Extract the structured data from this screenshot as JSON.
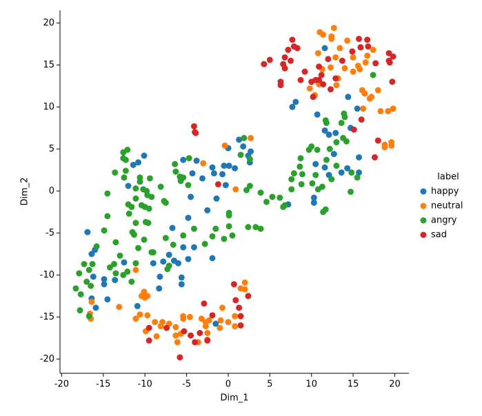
{
  "chart_data": {
    "type": "scatter",
    "x_label": "Dim_1",
    "y_label": "Dim_2",
    "legend_title": "label",
    "legend_position": "right",
    "xlim": [
      -20.2,
      21.7
    ],
    "ylim": [
      -21.7,
      21.5
    ],
    "xticks": [
      -20,
      -15,
      -10,
      -5,
      0,
      5,
      10,
      15,
      20
    ],
    "yticks": [
      -20,
      -15,
      -10,
      -5,
      0,
      5,
      10,
      15,
      20
    ],
    "series": [
      {
        "name": "happy",
        "color": "#1f77b4",
        "x": [
          -16.9,
          -16.4,
          -16.0,
          -16.4,
          -16.2,
          -15.9,
          -14.9,
          -14.9,
          -14.5,
          -13.6,
          -12.5,
          -11.4,
          -10.8,
          -10.1,
          -12.0,
          -10.9,
          -9.0,
          -8.3,
          -8.2,
          -7.8,
          -7.1,
          -6.7,
          -6.5,
          -6.0,
          -5.4,
          -5.6,
          -5.6,
          -5.4,
          -4.8,
          -4.8,
          -4.5,
          -4.3,
          -4.1,
          -3.8,
          -3.1,
          -2.5,
          -1.9,
          -1.9,
          -1.7,
          -1.4,
          -1.5,
          -0.7,
          -0.5,
          -0.3,
          0.0,
          0.1,
          0.8,
          1.3,
          1.8,
          2.4,
          2.7,
          2.6,
          7.7,
          8.1,
          7.2,
          10.3,
          10.3,
          10.5,
          10.7,
          11.6,
          11.6,
          11.6,
          12.1,
          12.1,
          12.7,
          12.9,
          13.6,
          14.3,
          14.4,
          14.7,
          15.5,
          15.7,
          15.7
        ],
        "y": [
          -4.9,
          -7.5,
          -7.0,
          -12.8,
          -10.2,
          -13.9,
          -10.5,
          -11.1,
          -12.9,
          -10.6,
          -8.5,
          3.1,
          3.4,
          4.2,
          0.6,
          -13.7,
          -8.6,
          -11.6,
          -10.2,
          -8.4,
          -7.6,
          -4.4,
          -8.3,
          -8.6,
          3.7,
          -10.3,
          -11.1,
          -6.7,
          -3.2,
          -8.1,
          -0.7,
          2.1,
          -6.7,
          3.6,
          1.5,
          -2.3,
          2.8,
          -8.0,
          2.1,
          -0.9,
          -15.8,
          2.0,
          3.0,
          0.7,
          5.1,
          3.0,
          2.7,
          6.1,
          5.3,
          4.2,
          4.7,
          3.4,
          10.0,
          10.6,
          -1.6,
          -0.8,
          -1.4,
          3.2,
          9.1,
          7.2,
          17.0,
          2.8,
          1.9,
          6.7,
          4.4,
          6.9,
          2.2,
          2.7,
          11.2,
          7.5,
          9.8,
          4.0,
          2.2
        ]
      },
      {
        "name": "neutral",
        "color": "#ff7f0e",
        "x": [
          11.0,
          11.4,
          12.7,
          12.4,
          12.4,
          14.3,
          10.8,
          13.4,
          12.9,
          15.0,
          16.7,
          17.4,
          16.5,
          15.6,
          15.8,
          14.0,
          12.3,
          11.3,
          15.0,
          13.2,
          13.0,
          10.9,
          9.8,
          10.4,
          16.1,
          16.4,
          17.2,
          17.0,
          18.0,
          16.2,
          18.3,
          18.8,
          18.8,
          19.2,
          19.6,
          19.6,
          19.8,
          -3.0,
          -0.4,
          0.9,
          2.7,
          -16.6,
          -16.4,
          -16.5,
          -13.1,
          -11.1,
          -10.4,
          -10.1,
          -9.7,
          -10.0,
          -11.1,
          -10.6,
          -9.7,
          -9.9,
          -8.8,
          -8.6,
          -8.1,
          -7.9,
          -7.1,
          -6.3,
          -6.3,
          -6.1,
          -5.7,
          -5.4,
          -5.4,
          -4.6,
          -3.6,
          -3.2,
          -2.7,
          -2.7,
          -2.5,
          -2.5,
          -2.3,
          -1.0,
          -0.7,
          -0.9,
          0.0,
          0.8,
          0.8,
          1.5,
          2.0,
          2.0
        ],
        "y": [
          18.9,
          18.6,
          19.4,
          18.4,
          18.1,
          17.9,
          16.4,
          17.0,
          15.9,
          15.9,
          16.1,
          16.8,
          15.3,
          14.9,
          14.5,
          14.6,
          14.7,
          14.5,
          14.2,
          13.4,
          12.6,
          12.7,
          12.2,
          11.4,
          12.0,
          11.6,
          11.2,
          11.0,
          12.0,
          9.8,
          9.5,
          5.2,
          5.5,
          9.5,
          5.4,
          5.8,
          9.8,
          3.3,
          5.4,
          0.2,
          6.3,
          -14.6,
          -13.2,
          -15.2,
          -13.8,
          -9.4,
          -12.5,
          -12.0,
          -12.5,
          -12.7,
          -15.2,
          -14.7,
          -14.8,
          -16.7,
          -15.6,
          -17.3,
          -16.1,
          -15.6,
          -15.8,
          -16.2,
          -17.2,
          -18.0,
          -17.0,
          -14.9,
          -15.2,
          -15.0,
          -18.0,
          -15.2,
          -15.6,
          -16.1,
          -16.9,
          -17.7,
          -15.4,
          -16.3,
          -13.9,
          -15.4,
          -15.6,
          -14.9,
          -16.1,
          -11.6,
          -10.9,
          -11.7
        ]
      },
      {
        "name": "angry",
        "color": "#2ca02c",
        "x": [
          -18.3,
          -17.9,
          -17.7,
          -17.8,
          -17.3,
          -17.0,
          -16.7,
          -16.5,
          -16.3,
          -15.8,
          -16.7,
          -14.9,
          -14.5,
          -14.5,
          -14.2,
          -13.7,
          -13.5,
          -13.6,
          -13.5,
          -13.0,
          -12.6,
          -12.6,
          -12.5,
          -12.3,
          -12.1,
          -12.3,
          -12.6,
          -12.1,
          -12.0,
          -11.9,
          -11.6,
          -11.6,
          -11.5,
          -11.3,
          -11.1,
          -11.1,
          -11.1,
          -11.1,
          -10.8,
          -10.6,
          -10.6,
          -10.4,
          -10.2,
          -10.1,
          -10.0,
          -9.9,
          -9.8,
          -9.7,
          -9.6,
          -9.5,
          -9.4,
          -9.2,
          -9.2,
          -9.0,
          -8.1,
          -7.7,
          -7.5,
          -7.5,
          -7.3,
          -7.1,
          -6.6,
          -6.4,
          -6.3,
          -5.8,
          -5.7,
          -5.4,
          -5.4,
          -4.8,
          -4.7,
          -4.1,
          -2.8,
          -1.9,
          -1.5,
          -0.5,
          0.1,
          0.1,
          0.1,
          0.5,
          1.5,
          1.9,
          2.2,
          2.4,
          2.6,
          2.6,
          3.3,
          3.9,
          3.9,
          4.6,
          5.3,
          6.2,
          6.6,
          6.8,
          7.6,
          7.6,
          7.9,
          8.6,
          8.7,
          8.8,
          8.9,
          9.7,
          10.0,
          10.1,
          10.5,
          10.7,
          10.8,
          11.3,
          11.4,
          11.7,
          11.7,
          11.8,
          11.8,
          12.2,
          12.4,
          13.0,
          13.0,
          13.6,
          13.8,
          13.9,
          14.0,
          14.2,
          14.7,
          14.8,
          15.5,
          17.4
        ],
        "y": [
          -11.6,
          -9.8,
          -12.3,
          -14.2,
          -8.7,
          -10.8,
          -9.4,
          -11.3,
          -8.7,
          -6.6,
          -14.9,
          -4.7,
          -0.3,
          -3.0,
          -9.1,
          -8.7,
          -9.8,
          2.2,
          -6.1,
          -7.7,
          4.6,
          3.9,
          1.6,
          2.4,
          4.9,
          3.7,
          -10.0,
          -9.6,
          -1.6,
          -2.7,
          -1.9,
          -10.8,
          -4.9,
          -5.2,
          0.3,
          -3.8,
          -0.9,
          -8.6,
          -6.8,
          1.6,
          1.1,
          -1.7,
          0.2,
          -5.8,
          -1.9,
          -3.7,
          0.0,
          -0.5,
          -3.8,
          -2.1,
          1.5,
          -0.7,
          -7.3,
          -7.3,
          0.5,
          -1.2,
          -1.4,
          -5.6,
          -9.3,
          -8.9,
          -6.4,
          3.2,
          2.3,
          1.7,
          1.2,
          1.6,
          -5.3,
          0.7,
          3.9,
          -4.5,
          -6.3,
          -5.4,
          -4.5,
          -5.7,
          -2.9,
          -2.6,
          -4.2,
          -5.3,
          4.3,
          6.3,
          0.1,
          -4.3,
          3.8,
          0.6,
          -4.3,
          -4.5,
          -0.2,
          -1.3,
          -0.7,
          -0.8,
          -1.9,
          -1.7,
          1.4,
          0.2,
          2.1,
          2.9,
          3.9,
          0.8,
          2.0,
          4.9,
          5.3,
          0.9,
          1.9,
          4.9,
          0.2,
          0.5,
          -2.5,
          -2.2,
          8.4,
          8.1,
          3.7,
          5.0,
          1.4,
          3.0,
          5.8,
          8.1,
          6.3,
          9.2,
          8.8,
          5.9,
          -0.1,
          2.2,
          1.6,
          13.8
        ]
      },
      {
        "name": "sad",
        "color": "#d62728",
        "x": [
          4.3,
          5.0,
          6.3,
          6.3,
          6.6,
          6.8,
          6.8,
          7.2,
          7.5,
          7.7,
          7.9,
          8.3,
          8.7,
          9.2,
          10.0,
          10.2,
          10.5,
          10.9,
          10.9,
          11.2,
          11.4,
          12.0,
          12.3,
          12.9,
          13.7,
          14.9,
          15.1,
          15.7,
          15.9,
          16.0,
          16.7,
          16.8,
          17.6,
          17.7,
          18.0,
          19.3,
          19.3,
          19.4,
          19.7,
          19.8,
          -4.1,
          -4.0,
          -3.9,
          -1.2,
          -2.9,
          -1.9,
          0.7,
          0.9,
          1.3,
          1.5,
          1.5,
          2.4,
          -9.5,
          -9.5,
          -7.4,
          -5.8,
          -5.3,
          -4.5,
          -4.0,
          -3.4,
          -2.5
        ],
        "y": [
          15.1,
          15.6,
          13.0,
          12.6,
          15.1,
          15.9,
          14.6,
          16.8,
          15.5,
          18.0,
          17.2,
          17.0,
          13.2,
          14.2,
          13.0,
          11.2,
          13.2,
          14.8,
          13.2,
          13.8,
          12.7,
          15.7,
          12.1,
          13.4,
          15.5,
          16.6,
          7.3,
          18.1,
          17.1,
          8.5,
          18.0,
          17.2,
          4.0,
          15.2,
          6.0,
          16.4,
          15.5,
          15.3,
          13.0,
          16.0,
          7.7,
          7.0,
          6.9,
          0.8,
          -13.4,
          -14.8,
          -11.1,
          -13.0,
          -13.9,
          -14.9,
          -16.0,
          -12.5,
          -16.3,
          -17.8,
          -16.3,
          -19.8,
          -16.7,
          -17.2,
          -18.0,
          -16.9,
          -17.8
        ]
      }
    ]
  }
}
